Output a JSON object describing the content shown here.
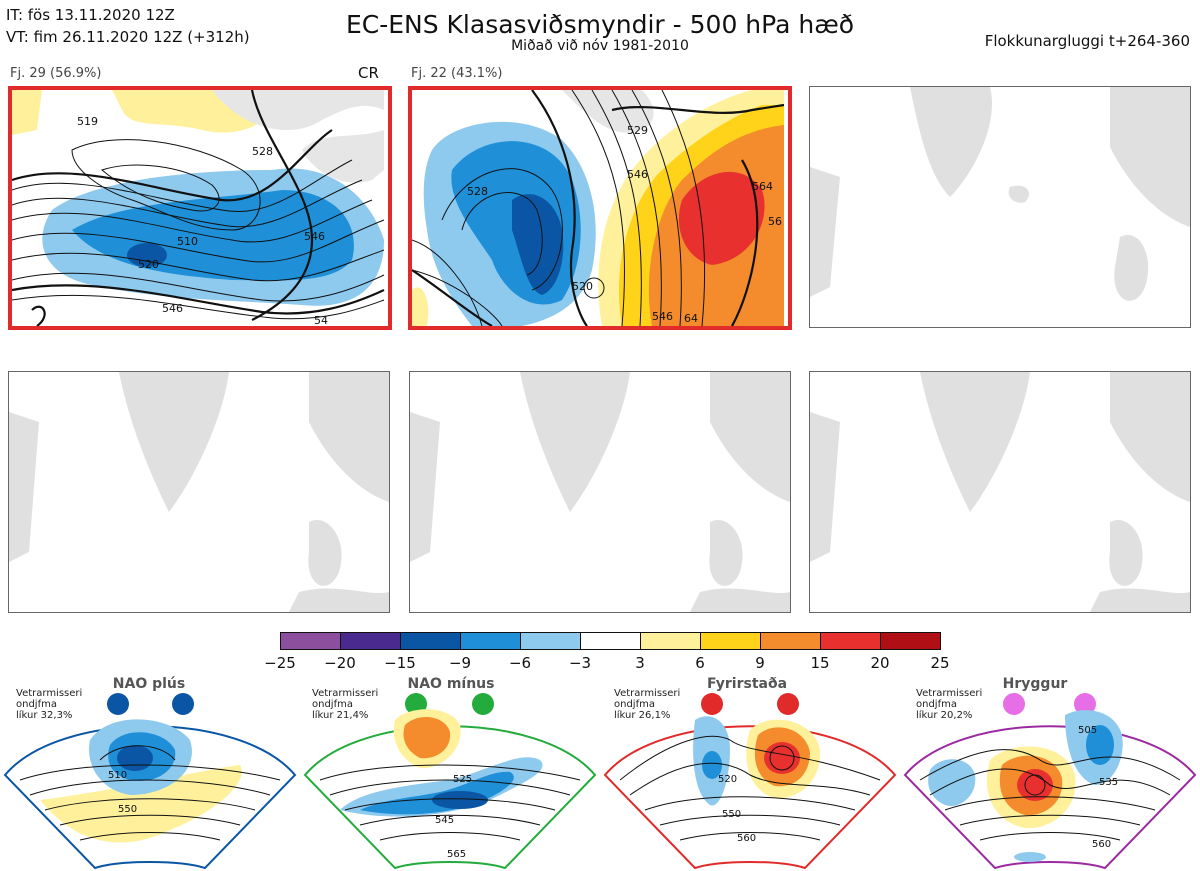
{
  "header": {
    "it_line": "IT: fös 13.11.2020 12Z",
    "vt_line": "VT: fim 26.11.2020 12Z  (+312h)",
    "title": "EC-ENS Klasasviðsmyndir - 500 hPa hæð",
    "subtitle": "Miðað við nóv 1981-2010",
    "window": "Flokkunargluggi t+264-360"
  },
  "panels": [
    {
      "label": "Fj. 29 (56.9%)",
      "tag": "CR",
      "active": true
    },
    {
      "label": "Fj. 22 (43.1%)",
      "tag": "",
      "active": true
    },
    {
      "label": "",
      "tag": "",
      "active": false
    },
    {
      "label": "",
      "tag": "",
      "active": false
    },
    {
      "label": "",
      "tag": "",
      "active": false
    },
    {
      "label": "",
      "tag": "",
      "active": false
    }
  ],
  "contour_labels": {
    "p1": [
      "519",
      "528",
      "510",
      "546",
      "520",
      "546",
      "54"
    ],
    "p2": [
      "529",
      "528",
      "546",
      "564",
      "56",
      "520",
      "546",
      "64"
    ]
  },
  "colorbar": {
    "ticks": [
      "−25",
      "−20",
      "−15",
      "−9",
      "−6",
      "−3",
      "3",
      "6",
      "9",
      "15",
      "20",
      "25"
    ],
    "colors": [
      "#8b4f9e",
      "#4b2a8f",
      "#0b56a4",
      "#1f8fd7",
      "#8ec9ee",
      "#ffffff",
      "#fff19b",
      "#ffd319",
      "#f48b2c",
      "#e8312f",
      "#b10f16"
    ]
  },
  "regimes": [
    {
      "name": "NAO plús",
      "note": [
        "Vetrarmisseri",
        "ondjfma",
        "líkur 32,3%"
      ],
      "color": "#0b56a4",
      "labels": [
        "510",
        "550"
      ]
    },
    {
      "name": "NAO mínus",
      "note": [
        "Vetrarmisseri",
        "ondjfma",
        "líkur 21,4%"
      ],
      "color": "#23ab3c",
      "labels": [
        "525",
        "545",
        "565"
      ]
    },
    {
      "name": "Fyrirstaða",
      "note": [
        "Vetrarmisseri",
        "ondjfma",
        "líkur 26,1%"
      ],
      "color": "#e12b2b",
      "labels": [
        "520",
        "550",
        "560"
      ]
    },
    {
      "name": "Hryggur",
      "note": [
        "Vetrarmisseri",
        "ondjfma",
        "líkur 20,2%"
      ],
      "color": "#e66ee6",
      "labels": [
        "505",
        "535",
        "560"
      ]
    }
  ]
}
